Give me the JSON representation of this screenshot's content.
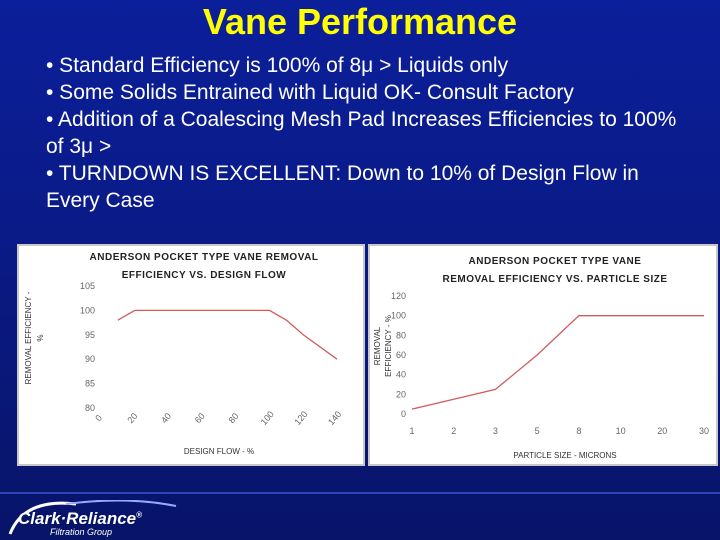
{
  "slide": {
    "title": "Vane Performance",
    "bullets": [
      "• Standard Efficiency is 100% of 8μ > Liquids only",
      "• Some Solids Entrained with Liquid OK- Consult Factory",
      "• Addition of a Coalescing Mesh Pad  Increases Efficiencies to 100% of 3μ >",
      "• TURNDOWN IS EXCELLENT: Down to 10% of Design Flow in Every Case"
    ]
  },
  "logo": {
    "name": "Clark·Reliance",
    "registered": "®",
    "sub": "Filtration Group"
  },
  "colors": {
    "background": "#0b1f9a",
    "title": "#ffff00",
    "text": "#ffffff",
    "line": "#d45a5a"
  },
  "chart_data": [
    {
      "type": "line",
      "title_lines": [
        "ANDERSON POCKET TYPE VANE REMOVAL",
        "EFFICIENCY VS. DESIGN FLOW"
      ],
      "xlabel": "DESIGN FLOW - %",
      "ylabel_lines": [
        "REMOVAL EFFICIENCY -",
        "%"
      ],
      "x_ticks": [
        "0",
        "20",
        "40",
        "60",
        "80",
        "100",
        "120",
        "140"
      ],
      "y_ticks": [
        80,
        85,
        90,
        95,
        100,
        105
      ],
      "ylim": [
        80,
        105
      ],
      "xlim": [
        0,
        140
      ],
      "x": [
        10,
        20,
        100,
        110,
        120,
        140
      ],
      "y": [
        98,
        100,
        100,
        98,
        95,
        90
      ]
    },
    {
      "type": "line",
      "title_lines": [
        "ANDERSON POCKET TYPE VANE",
        "REMOVAL EFFICIENCY VS. PARTICLE SIZE"
      ],
      "xlabel": "PARTICLE SIZE - MICRONS",
      "ylabel_lines": [
        "REMOVAL",
        "EFFICIENCY - %"
      ],
      "x_ticks": [
        "1",
        "2",
        "3",
        "5",
        "8",
        "10",
        "20",
        "30"
      ],
      "y_ticks": [
        0,
        20,
        40,
        60,
        80,
        100,
        120
      ],
      "ylim": [
        0,
        120
      ],
      "x": [
        "1",
        "2",
        "3",
        "5",
        "8",
        "10",
        "20",
        "30"
      ],
      "y": [
        5,
        15,
        25,
        60,
        100,
        100,
        100,
        100
      ]
    }
  ]
}
